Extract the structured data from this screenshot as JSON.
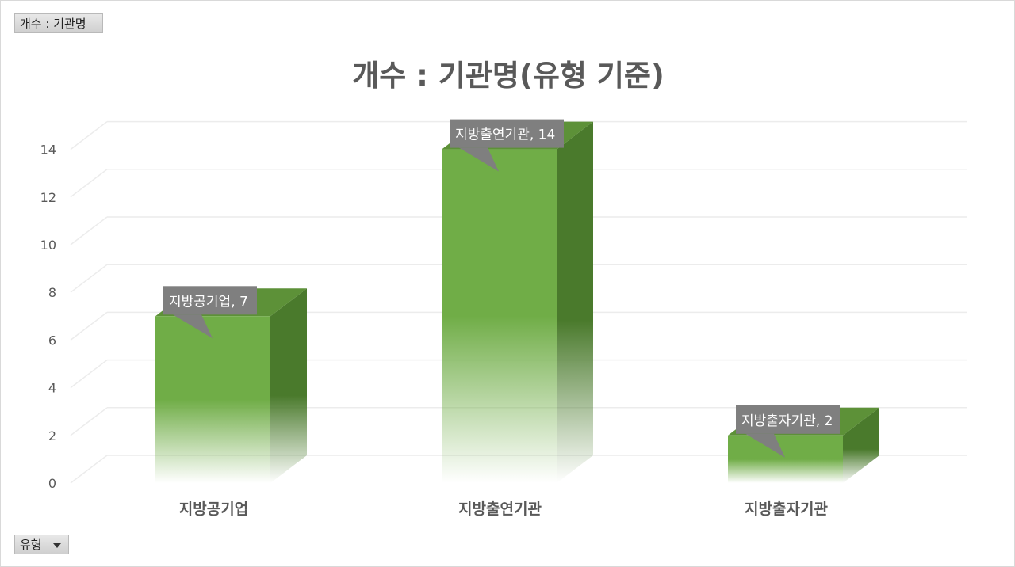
{
  "pivot": {
    "value_field_label": "개수 : 기관명",
    "axis_field_label": "유형"
  },
  "chart_data": {
    "type": "bar",
    "title": "개수 : 기관명(유형 기준)",
    "categories": [
      "지방공기업",
      "지방출연기관",
      "지방출자기관"
    ],
    "values": [
      7,
      14,
      2
    ],
    "data_labels": [
      "지방공기업, 7",
      "지방출연기관, 14",
      "지방출자기관, 2"
    ],
    "ylim": [
      0,
      14
    ],
    "yticks": [
      0,
      2,
      4,
      6,
      8,
      10,
      12,
      14
    ],
    "grid": true,
    "legend": "none",
    "style": "3d-column",
    "colors": {
      "bar_front": "#70ad47",
      "bar_side": "#4a7a2c",
      "bar_top": "#5d9138",
      "callout": "#7f7f7f",
      "callout_text": "#ffffff",
      "grid": "#ececec",
      "axis_text": "#595959"
    }
  }
}
